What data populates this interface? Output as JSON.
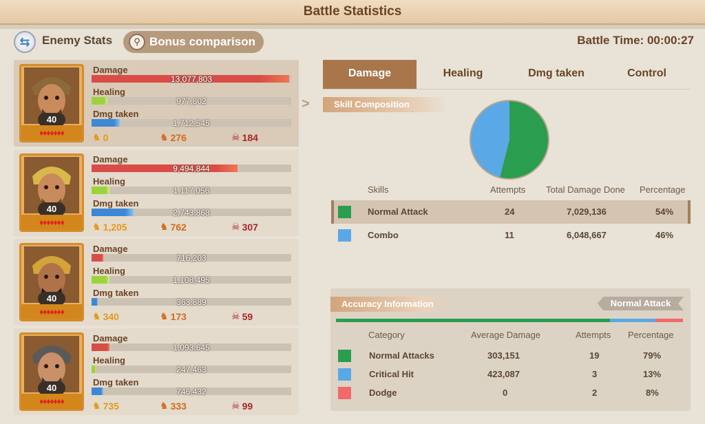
{
  "title": "Battle Statistics",
  "header": {
    "enemy_stats_label": "Enemy Stats",
    "bonus_comparison_label": "Bonus comparison",
    "battle_time": "Battle Time: 00:00:27"
  },
  "stat_labels": {
    "damage": "Damage",
    "healing": "Healing",
    "dmg_taken": "Dmg taken"
  },
  "heroes": [
    {
      "level": "40",
      "damage": "13,077,803",
      "damage_frac": 0.99,
      "healing": "977,802",
      "healing_frac": 0.08,
      "taken": "1,712,545",
      "taken_frac": 0.14,
      "s1": "0",
      "s2": "276",
      "s3": "184"
    },
    {
      "level": "40",
      "damage": "9,494,844",
      "damage_frac": 0.73,
      "healing": "1,117,056",
      "healing_frac": 0.09,
      "taken": "2,743,868",
      "taken_frac": 0.21,
      "s1": "1,205",
      "s2": "762",
      "s3": "307"
    },
    {
      "level": "40",
      "damage": "716,203",
      "damage_frac": 0.06,
      "healing": "1,108,495",
      "healing_frac": 0.09,
      "taken": "363,889",
      "taken_frac": 0.03,
      "s1": "340",
      "s2": "173",
      "s3": "59"
    },
    {
      "level": "40",
      "damage": "1,093,645",
      "damage_frac": 0.09,
      "healing": "247,463",
      "healing_frac": 0.02,
      "taken": "746,432",
      "taken_frac": 0.06,
      "s1": "735",
      "s2": "333",
      "s3": "99"
    }
  ],
  "tabs": [
    "Damage",
    "Healing",
    "Dmg taken",
    "Control"
  ],
  "skill_composition": {
    "label": "Skill Composition",
    "headers": {
      "skills": "Skills",
      "attempts": "Attempts",
      "total": "Total Damage Done",
      "percentage": "Percentage"
    },
    "rows": [
      {
        "name": "Normal Attack",
        "attempts": "24",
        "total": "7,029,136",
        "percentage": "54%",
        "color": "#2a9d4f"
      },
      {
        "name": "Combo",
        "attempts": "11",
        "total": "6,048,667",
        "percentage": "46%",
        "color": "#5aa9e6"
      }
    ]
  },
  "accuracy": {
    "label": "Accuracy Information",
    "selector": "Normal Attack",
    "headers": {
      "category": "Category",
      "avg": "Average Damage",
      "attempts": "Attempts",
      "percentage": "Percentage"
    },
    "rows": [
      {
        "name": "Normal Attacks",
        "avg": "303,151",
        "attempts": "19",
        "percentage": "79%",
        "color": "#2a9d4f"
      },
      {
        "name": "Critical Hit",
        "avg": "423,087",
        "attempts": "3",
        "percentage": "13%",
        "color": "#5aa9e6"
      },
      {
        "name": "Dodge",
        "avg": "0",
        "attempts": "2",
        "percentage": "8%",
        "color": "#f06a6a"
      }
    ]
  },
  "colors": {
    "accent": "#a9754a",
    "title": "#6a4326"
  }
}
